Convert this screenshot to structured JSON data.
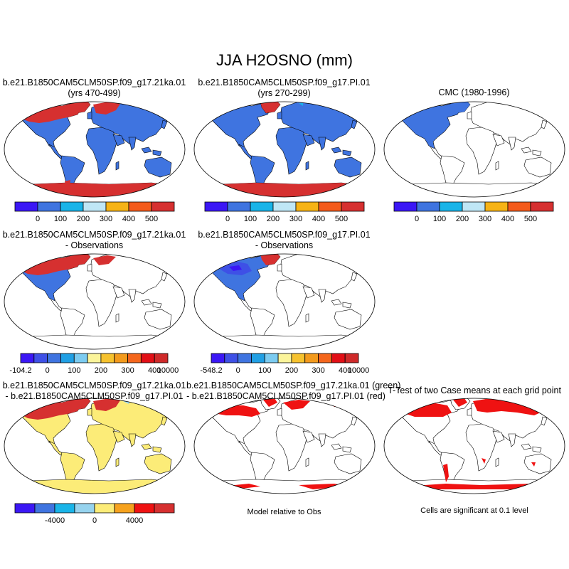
{
  "figure": {
    "title": "JJA H2OSNO (mm)"
  },
  "row1": {
    "panel1": {
      "title_line1": "b.e21.B1850CAM5CLM50SP.f09_g17.21ka.01",
      "title_line2": "(yrs 470-499)"
    },
    "panel2": {
      "title_line1": "b.e21.B1850CAM5CLM50SP.f09_g17.PI.01",
      "title_line2": "(yrs 270-299)"
    },
    "panel3": {
      "title_line1": "CMC (1980-1996)"
    },
    "colorbar": {
      "colors": [
        "#3b17f5",
        "#3f74e0",
        "#19b4e8",
        "#bfe6f5",
        "#f6b316",
        "#f45b1c",
        "#d63030"
      ],
      "labels": [
        "0",
        "100",
        "200",
        "300",
        "400",
        "500"
      ]
    }
  },
  "row2": {
    "panel1": {
      "title_line1": "b.e21.B1850CAM5CLM50SP.f09_g17.21ka.01",
      "title_line2": "- Observations"
    },
    "panel2": {
      "title_line1": "b.e21.B1850CAM5CLM50SP.f09_g17.PI.01",
      "title_line2": "- Observations"
    },
    "colorbar1": {
      "colors": [
        "#3b17f5",
        "#3e50e6",
        "#3f74e0",
        "#209fe4",
        "#7ccbf0",
        "#fbf49a",
        "#f6c22e",
        "#f39a1c",
        "#f4661c",
        "#e20f16",
        "#cf2a2a"
      ],
      "labels": [
        "-104.2",
        "0",
        "100",
        "200",
        "300",
        "400",
        "10000"
      ]
    },
    "colorbar2": {
      "colors": [
        "#3b17f5",
        "#3e50e6",
        "#3f74e0",
        "#209fe4",
        "#7ccbf0",
        "#fbf49a",
        "#f6c22e",
        "#f39a1c",
        "#f4661c",
        "#e20f16",
        "#cf2a2a"
      ],
      "labels": [
        "-548.2",
        "0",
        "100",
        "200",
        "300",
        "400",
        "10000"
      ]
    }
  },
  "row3": {
    "panel1": {
      "title_line1": "b.e21.B1850CAM5CLM50SP.f09_g17.21ka.01",
      "title_line2": "- b.e21.B1850CAM5CLM50SP.f09_g17.PI.01"
    },
    "panel2": {
      "title_line1": "b.e21.B1850CAM5CLM50SP.f09_g17.21ka.01 (green)",
      "title_line2": "- b.e21.B1850CAM5CLM50SP.f09_g17.PI.01 (red)"
    },
    "panel3": {
      "title_line1": "T-Test of two Case means at each grid point"
    },
    "colorbar": {
      "colors": [
        "#3b17f5",
        "#3f74e0",
        "#19b4e8",
        "#96d3ee",
        "#fcec78",
        "#f6a21e",
        "#ef1212",
        "#d63030"
      ],
      "labels": [
        "-4000",
        "0",
        "4000"
      ]
    },
    "note_middle": "Model relative to Obs",
    "note_right": "Cells are significant at 0.1 level"
  },
  "colors": {
    "snow_high": "#d63030",
    "snow_low": "#3f74e0",
    "snow_mid": "#19b4e8",
    "diff_neutral": "#fcec78",
    "sig_red": "#ef1212"
  }
}
